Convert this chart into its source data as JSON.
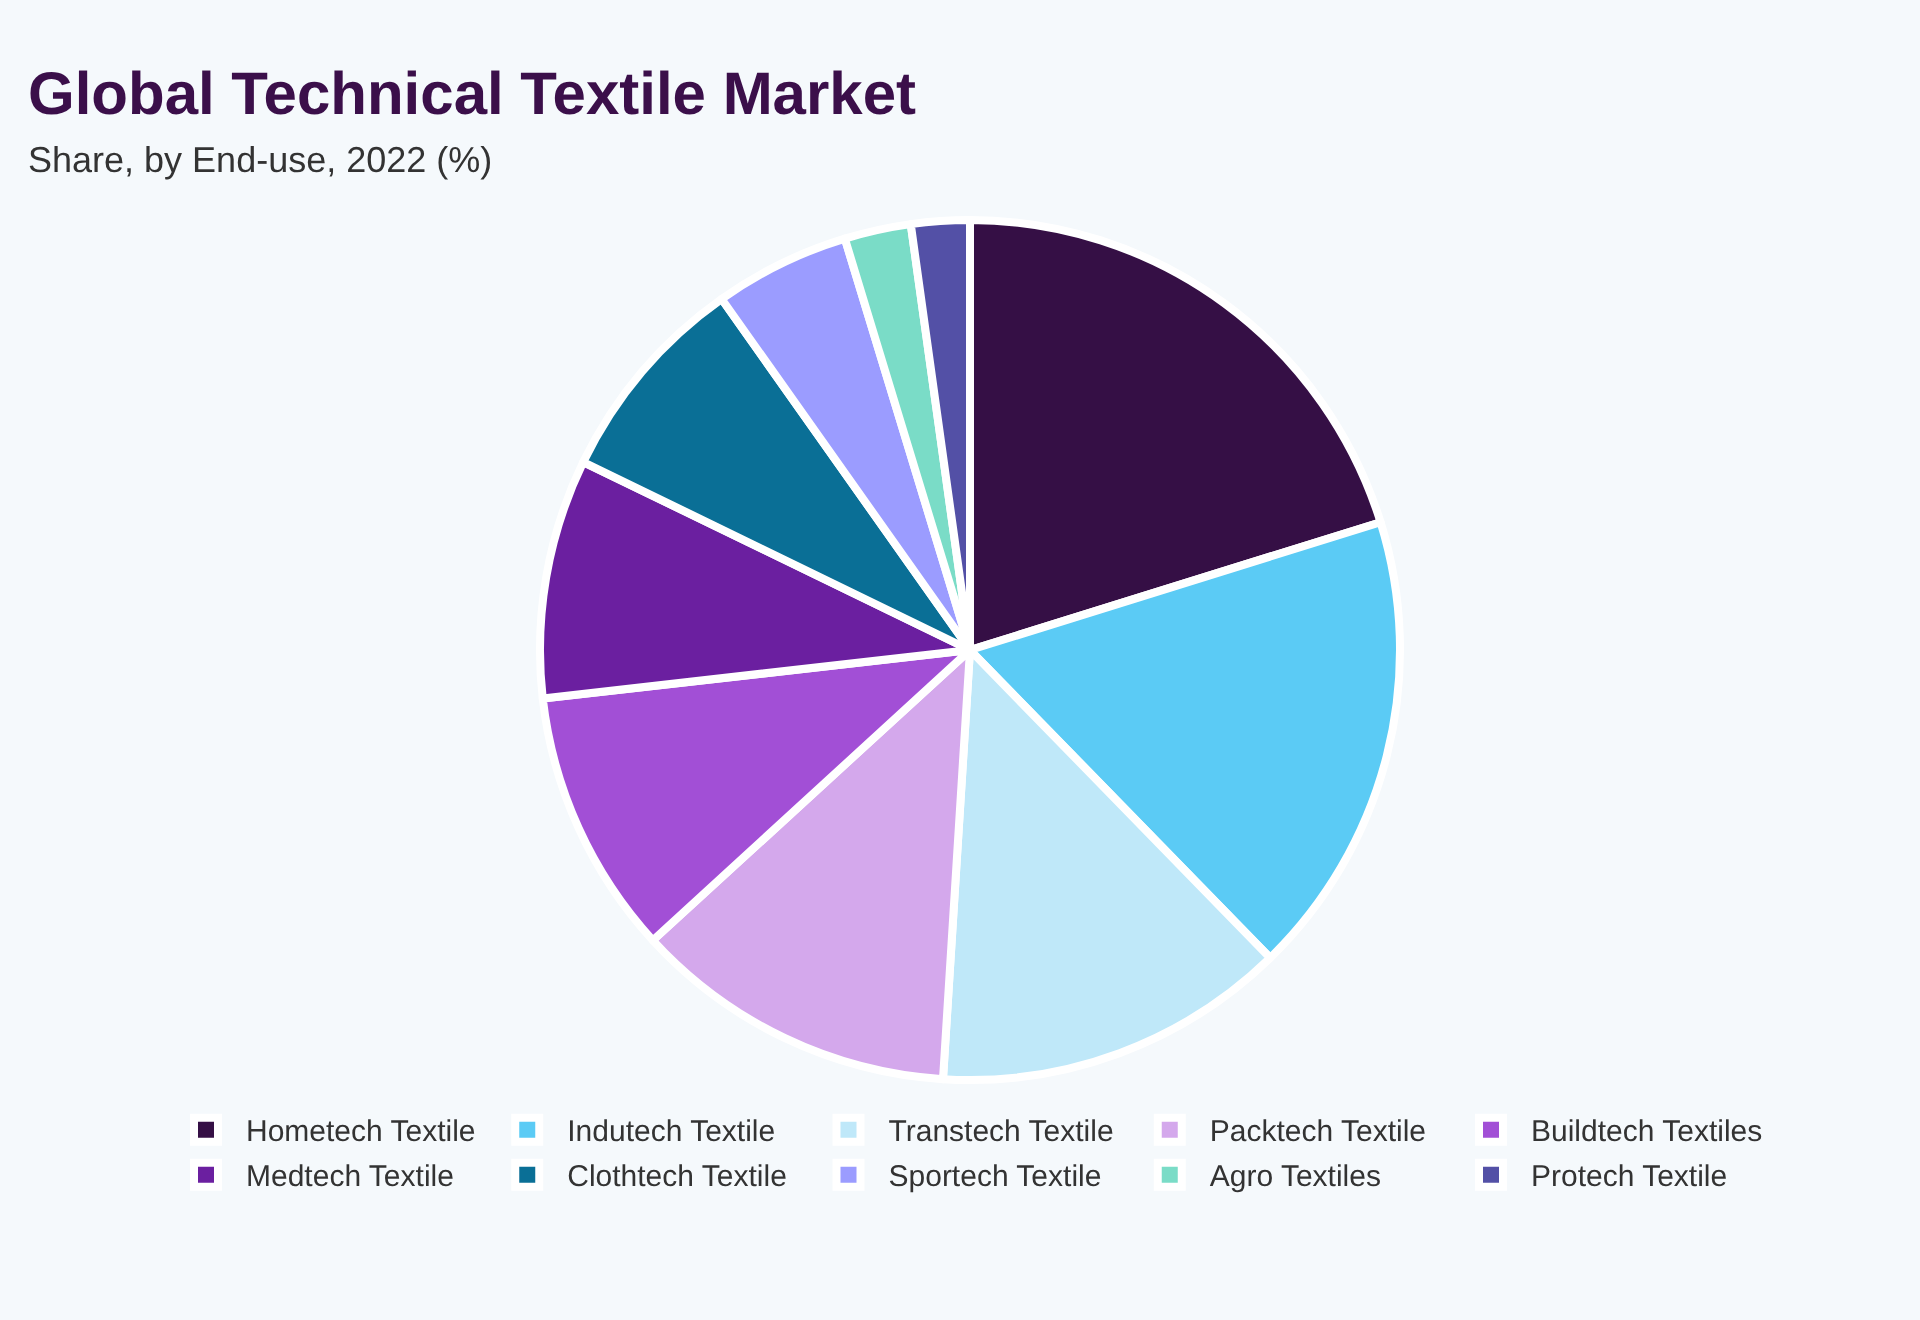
{
  "chart_data": {
    "type": "pie",
    "title": "Global Technical Textile Market",
    "subtitle": "Share, by End-use, 2022 (%)",
    "categories": [
      "Hometech Textile",
      "Indutech Textile",
      "Transtech Textile",
      "Packtech Textile",
      "Buildtech Textiles",
      "Medtech Textile",
      "Clothtech Textile",
      "Sportech Textile",
      "Agro Textiles",
      "Protech Textile"
    ],
    "values": [
      20.2,
      17.5,
      13.3,
      12.2,
      10,
      9,
      8,
      5.1,
      2.5,
      2.2
    ],
    "colors": [
      "#350f45",
      "#5bcbf5",
      "#bfe8f9",
      "#d4a8ec",
      "#a24fd6",
      "#6b1fa0",
      "#0a6f96",
      "#9b9cff",
      "#7adcc7",
      "#5350a6"
    ],
    "legend": "bottom"
  }
}
